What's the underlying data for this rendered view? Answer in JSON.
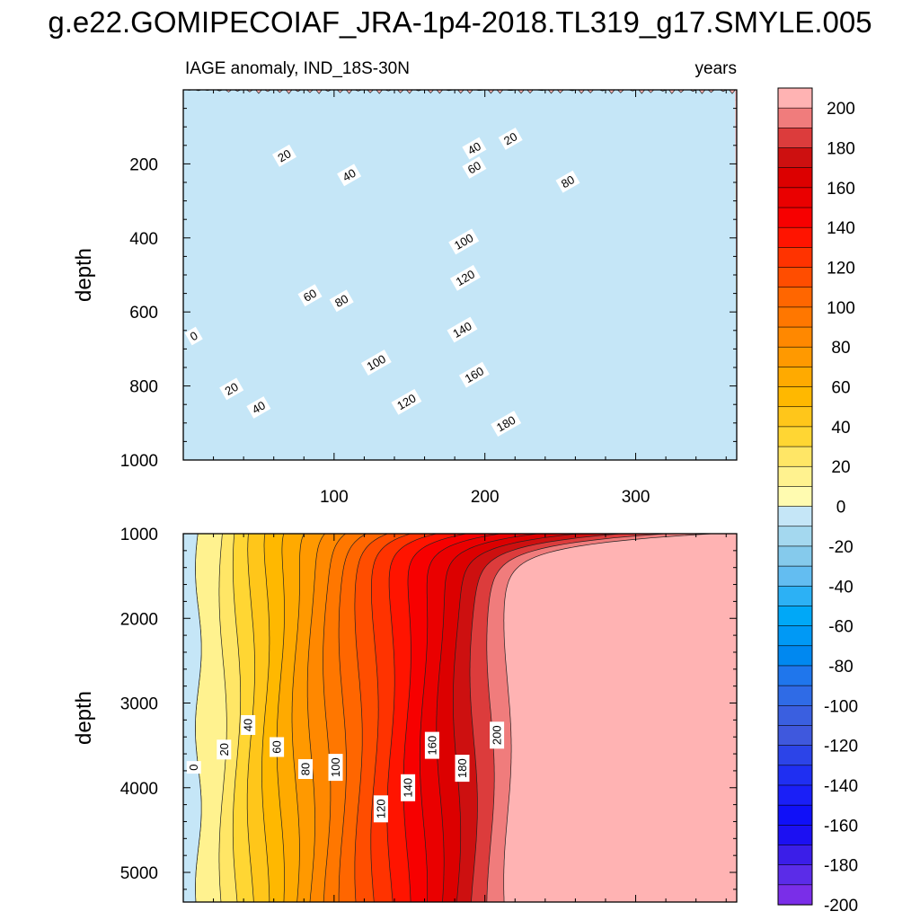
{
  "title": "g.e22.GOMIPECOIAF_JRA-1p4-2018.TL319_g17.SMYLE.005",
  "subtitle_left": "IAGE anomaly, IND_18S-30N",
  "subtitle_right": "years",
  "chart_data": {
    "type": "heatmap",
    "title": "g.e22.GOMIPECOIAF_JRA-1p4-2018.TL319_g17.SMYLE.005",
    "variable": "IAGE anomaly",
    "region": "IND_18S-30N",
    "units": "years",
    "x_range": [
      0,
      367
    ],
    "x_ticks": [
      100,
      200,
      300
    ],
    "panels": [
      {
        "name": "upper",
        "ylabel": "depth",
        "y_range": [
          0,
          1000
        ],
        "y_ticks": [
          200,
          400,
          600,
          800,
          1000
        ],
        "contour_labels": [
          {
            "text": "0",
            "x": 7,
            "y": 665
          },
          {
            "text": "20",
            "x": 32,
            "y": 808
          },
          {
            "text": "40",
            "x": 50,
            "y": 858
          },
          {
            "text": "60",
            "x": 84,
            "y": 555
          },
          {
            "text": "80",
            "x": 105,
            "y": 570
          },
          {
            "text": "100",
            "x": 128,
            "y": 737
          },
          {
            "text": "120",
            "x": 148,
            "y": 843
          },
          {
            "text": "140",
            "x": 185,
            "y": 648
          },
          {
            "text": "160",
            "x": 193,
            "y": 770
          },
          {
            "text": "180",
            "x": 214,
            "y": 902
          },
          {
            "text": "20",
            "x": 67,
            "y": 178
          },
          {
            "text": "40",
            "x": 110,
            "y": 230
          },
          {
            "text": "40",
            "x": 193,
            "y": 158
          },
          {
            "text": "60",
            "x": 193,
            "y": 210
          },
          {
            "text": "80",
            "x": 255,
            "y": 248
          },
          {
            "text": "100",
            "x": 186,
            "y": 410
          },
          {
            "text": "120",
            "x": 187,
            "y": 508
          },
          {
            "text": "20",
            "x": 217,
            "y": 132
          }
        ]
      },
      {
        "name": "lower",
        "ylabel": "depth",
        "y_range": [
          1000,
          5350
        ],
        "y_ticks": [
          1000,
          2000,
          3000,
          4000,
          5000
        ],
        "contour_labels": [
          {
            "text": "0",
            "x": 7,
            "y": 3760
          },
          {
            "text": "20",
            "x": 27,
            "y": 3550
          },
          {
            "text": "40",
            "x": 43,
            "y": 3260
          },
          {
            "text": "60",
            "x": 62,
            "y": 3520
          },
          {
            "text": "80",
            "x": 81,
            "y": 3780
          },
          {
            "text": "100",
            "x": 101,
            "y": 3760
          },
          {
            "text": "120",
            "x": 131,
            "y": 4250
          },
          {
            "text": "140",
            "x": 149,
            "y": 4000
          },
          {
            "text": "160",
            "x": 165,
            "y": 3500
          },
          {
            "text": "180",
            "x": 185,
            "y": 3770
          },
          {
            "text": "200",
            "x": 208,
            "y": 3380
          }
        ]
      }
    ],
    "colorbar": {
      "min": -200,
      "max": 200,
      "step": 10,
      "tick_labels": [
        "200",
        "180",
        "160",
        "140",
        "120",
        "100",
        "80",
        "60",
        "40",
        "20",
        "0",
        "-20",
        "-40",
        "-60",
        "-80",
        "-100",
        "-120",
        "-140",
        "-160",
        "-180",
        "-200"
      ]
    },
    "colors_top_to_bottom": [
      "#ffb3b3",
      "#f07c7c",
      "#dc3c3c",
      "#cd1010",
      "#dc0000",
      "#ea0000",
      "#f70000",
      "#ff1400",
      "#ff3300",
      "#ff4d00",
      "#ff6600",
      "#ff7700",
      "#ff8800",
      "#ff9900",
      "#ffaa00",
      "#ffb800",
      "#ffc61a",
      "#ffd633",
      "#ffe666",
      "#fff28f",
      "#fffbb0",
      "#c5e6f7",
      "#a4d8ef",
      "#85caec",
      "#63bdf1",
      "#2cb1f5",
      "#00a8f7",
      "#0099f5",
      "#0088f0",
      "#1f76ec",
      "#2f6be6",
      "#3a5fe0",
      "#3f58dd",
      "#2c44e8",
      "#1f2ff2",
      "#1a1ff7",
      "#1010f8",
      "#1c10f2",
      "#3b1ee8",
      "#5b2ce8",
      "#7a2ee8"
    ]
  }
}
